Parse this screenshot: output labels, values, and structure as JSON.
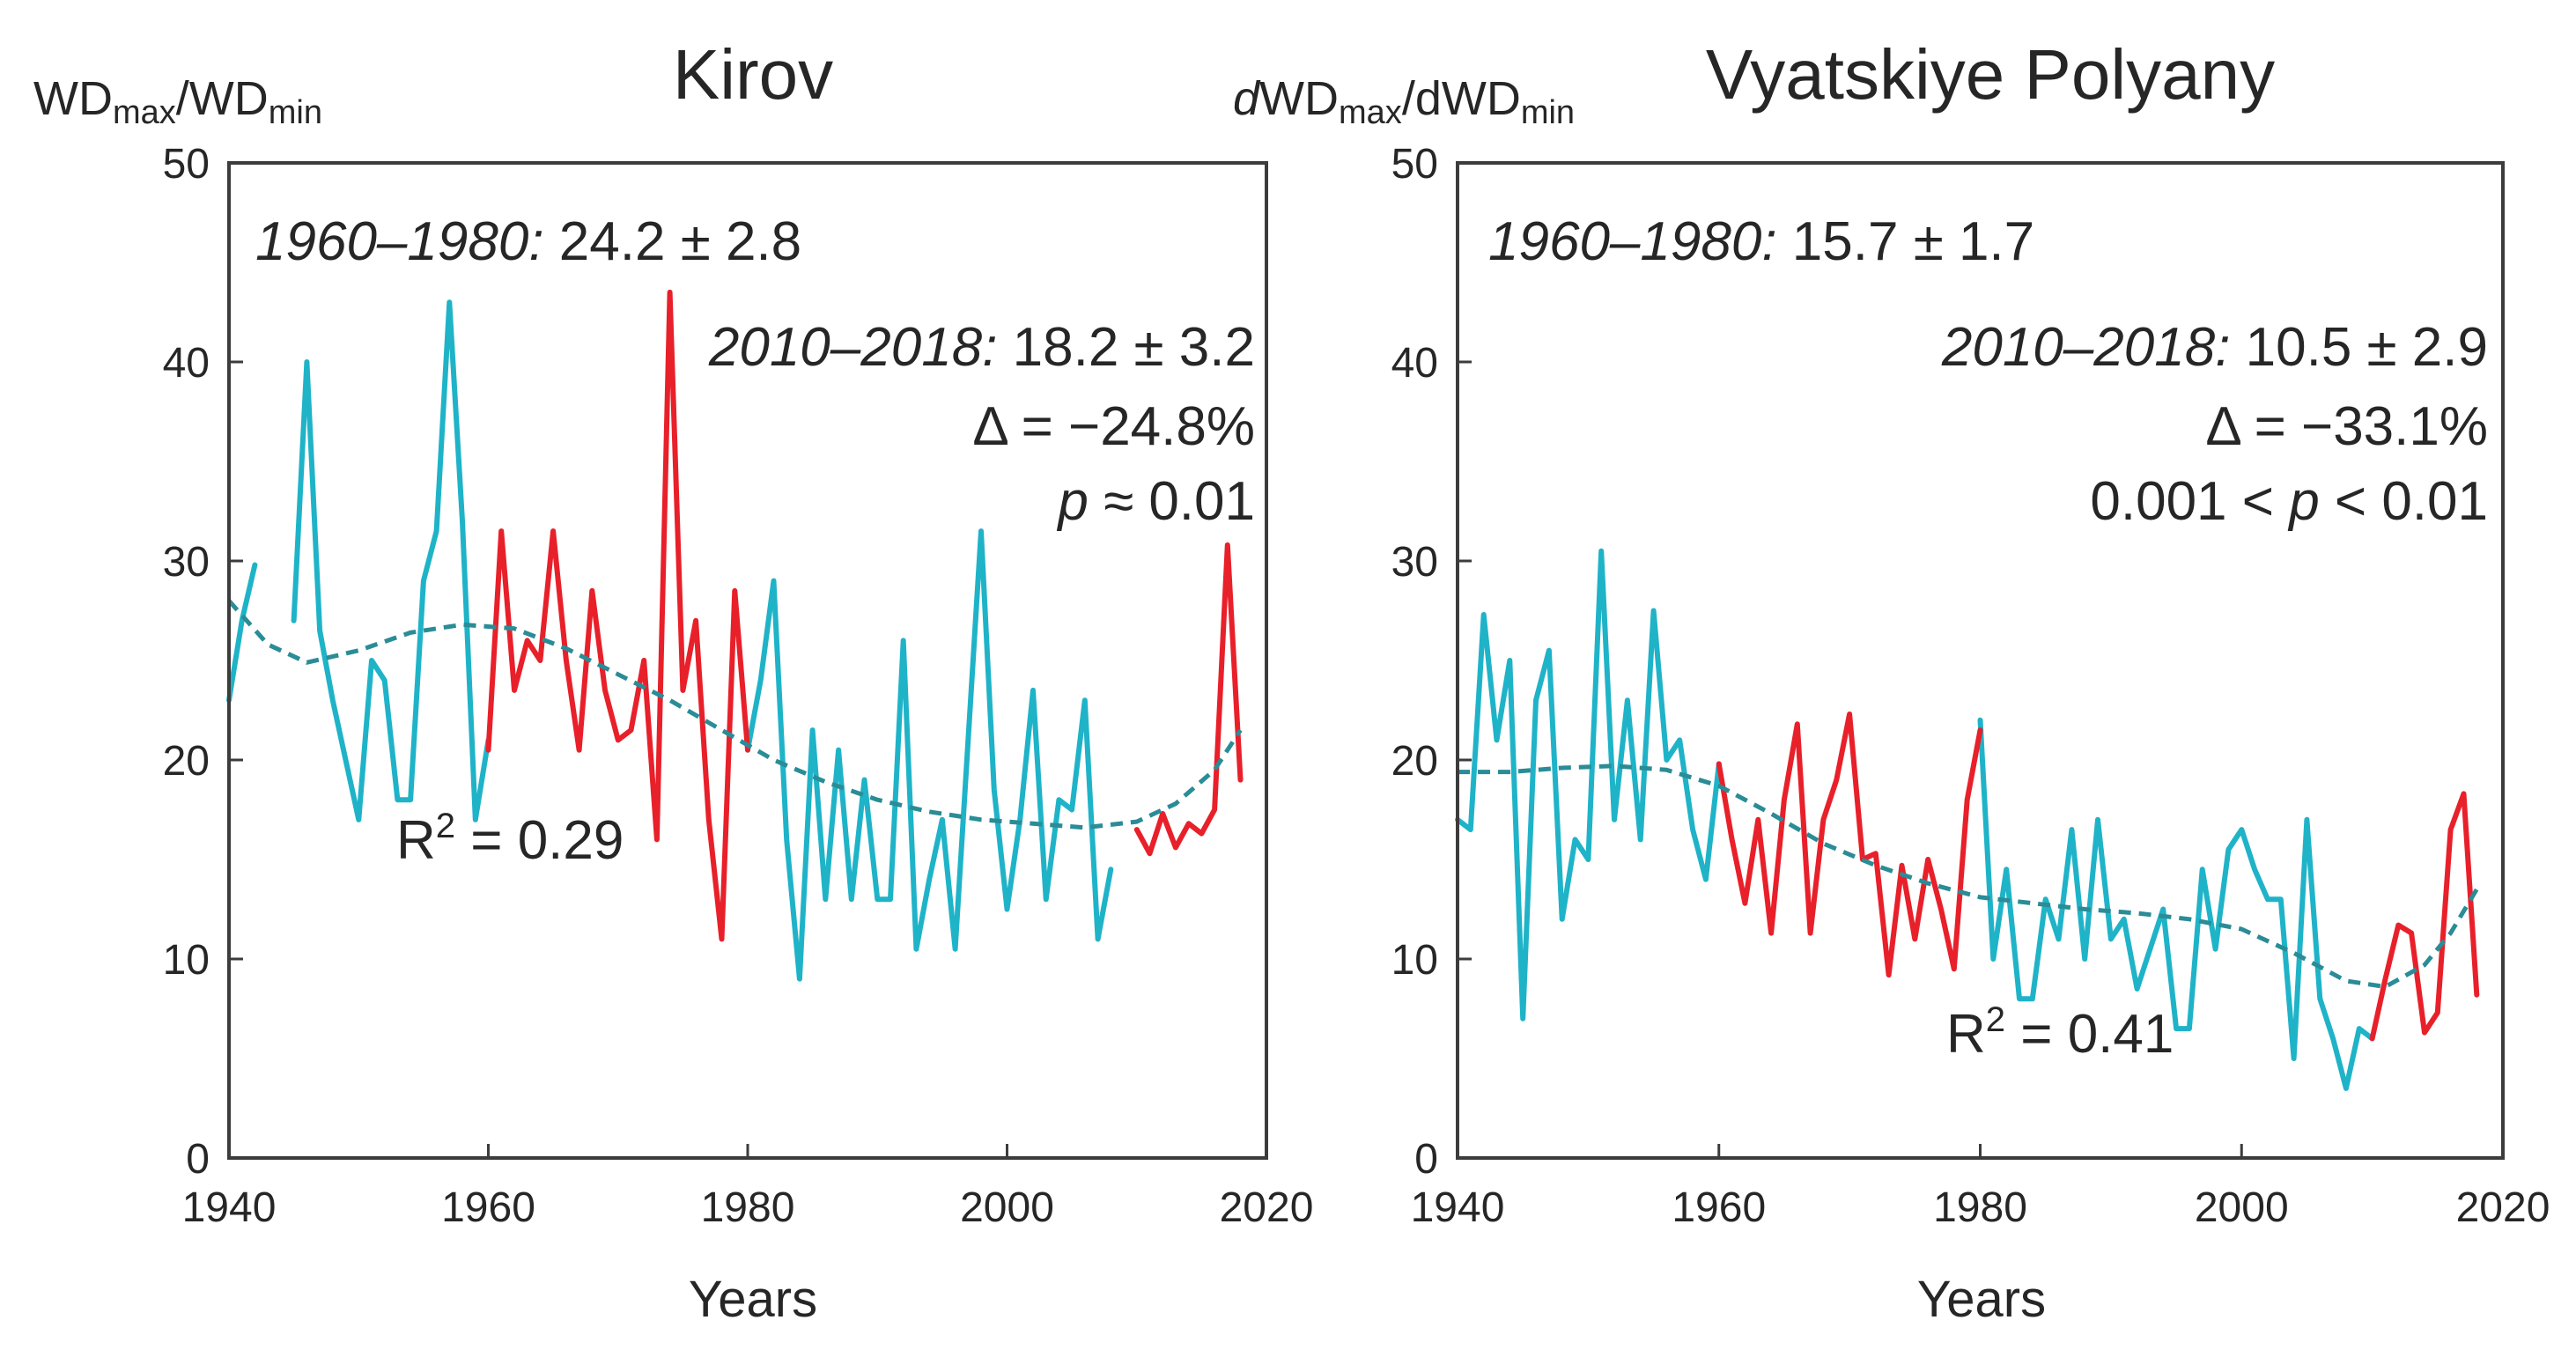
{
  "chart_data": [
    {
      "type": "line",
      "title": "Kirov",
      "ylabel": {
        "main": "WD",
        "sub1": "max",
        "sep": "/WD",
        "sub2": "min",
        "prefix": ""
      },
      "xlabel": "Years",
      "xlim": [
        1940,
        2020
      ],
      "ylim": [
        0,
        50
      ],
      "xticks": [
        "1940",
        "1960",
        "1980",
        "2000",
        "2020"
      ],
      "yticks": [
        "0",
        "10",
        "20",
        "30",
        "40",
        "50"
      ],
      "annotations": {
        "period1_label": "1960–1980:",
        "period1_value": "24.2 ± 2.8",
        "period2_label": "2010–2018:",
        "period2_value": "18.2 ± 3.2",
        "delta": "Δ = −24.8%",
        "p_label": "p",
        "p_rest": " ≈ 0.01",
        "r2_prefix": "R",
        "r2_sup": "2",
        "r2_rest": " = 0.29"
      },
      "series": [
        {
          "name": "cyan",
          "color": "#1fb3c8",
          "segments": [
            {
              "x": [
                1940,
                1941,
                1942
              ],
              "y": [
                23,
                27,
                29.8
              ]
            },
            {
              "x": [
                1945,
                1946,
                1947,
                1948,
                1949,
                1950,
                1951,
                1952,
                1953,
                1954,
                1955,
                1956,
                1957,
                1958,
                1959,
                1960
              ],
              "y": [
                27,
                40,
                26.5,
                23,
                20,
                17,
                25,
                24,
                18,
                18,
                29,
                31.5,
                43,
                32,
                17,
                21
              ]
            },
            {
              "x": [
                1980,
                1981,
                1982,
                1983,
                1984,
                1985,
                1986,
                1987,
                1988,
                1989,
                1990,
                1991,
                1992,
                1993,
                1994,
                1995,
                1996,
                1997,
                1998,
                1999,
                2000,
                2001,
                2002,
                2003,
                2004,
                2005,
                2006,
                2007,
                2008
              ],
              "y": [
                20.5,
                24,
                29,
                16,
                9,
                21.5,
                13,
                20.5,
                13,
                19,
                13,
                13,
                26,
                10.5,
                14,
                17,
                10.5,
                21,
                31.5,
                18.5,
                12.5,
                17,
                23.5,
                13,
                18,
                17.5,
                23,
                11,
                14.5
              ]
            }
          ]
        },
        {
          "name": "red",
          "color": "#e8202a",
          "segments": [
            {
              "x": [
                1960,
                1961,
                1962,
                1963,
                1964,
                1965,
                1966,
                1967,
                1968,
                1969,
                1970,
                1971,
                1972,
                1973,
                1974,
                1975,
                1976,
                1977,
                1978,
                1979,
                1980
              ],
              "y": [
                20.5,
                31.5,
                23.5,
                26,
                25,
                31.5,
                25,
                20.5,
                28.5,
                23.5,
                21,
                21.5,
                25,
                16,
                43.5,
                23.5,
                27,
                17,
                11,
                28.5,
                20.5
              ]
            },
            {
              "x": [
                2010,
                2011,
                2012,
                2013,
                2014,
                2015,
                2016,
                2017,
                2018
              ],
              "y": [
                16.5,
                15.3,
                17.3,
                15.6,
                16.8,
                16.3,
                17.5,
                30.8,
                19
              ]
            }
          ]
        }
      ],
      "trend": {
        "type": "polynomial",
        "style": "dashed",
        "color": "#2a8c96",
        "x": [
          1940,
          1943,
          1946,
          1950,
          1954,
          1958,
          1962,
          1966,
          1970,
          1974,
          1978,
          1982,
          1986,
          1990,
          1994,
          1998,
          2002,
          2006,
          2010,
          2013,
          2016,
          2018
        ],
        "y": [
          28,
          25.8,
          24.9,
          25.5,
          26.4,
          26.8,
          26.6,
          25.6,
          24.3,
          23,
          21.5,
          20,
          18.9,
          18,
          17.4,
          17,
          16.8,
          16.6,
          16.9,
          17.8,
          19.5,
          21.5
        ]
      }
    },
    {
      "type": "line",
      "title": "Vyatskiye Polyany",
      "ylabel": {
        "main": "WD",
        "sub1": "max",
        "sep": "/dWD",
        "sub2": "min",
        "prefix": "d"
      },
      "xlabel": "Years",
      "xlim": [
        1940,
        2020
      ],
      "ylim": [
        0,
        50
      ],
      "xticks": [
        "1940",
        "1960",
        "1980",
        "2000",
        "2020"
      ],
      "yticks": [
        "0",
        "10",
        "20",
        "30",
        "40",
        "50"
      ],
      "annotations": {
        "period1_label": "1960–1980:",
        "period1_value": "15.7 ± 1.7",
        "period2_label": "2010–2018:",
        "period2_value": "10.5 ± 2.9",
        "delta": "Δ = −33.1%",
        "p_pre": "0.001 < ",
        "p_label": "p",
        "p_rest": " < 0.01",
        "r2_prefix": "R",
        "r2_sup": "2",
        "r2_rest": " = 0.41"
      },
      "series": [
        {
          "name": "cyan",
          "color": "#1fb3c8",
          "segments": [
            {
              "x": [
                1940,
                1941,
                1942,
                1943,
                1944,
                1945,
                1946,
                1947,
                1948,
                1949,
                1950,
                1951,
                1952,
                1953,
                1954,
                1955,
                1956,
                1957,
                1958,
                1959,
                1960
              ],
              "y": [
                17,
                16.5,
                27.3,
                21,
                25,
                7,
                23,
                25.5,
                12,
                16,
                15,
                30.5,
                17,
                23,
                16,
                27.5,
                20,
                21,
                16.5,
                14,
                19.8
              ]
            },
            {
              "x": [
                1980,
                1981,
                1982,
                1983,
                1984,
                1985,
                1986,
                1987,
                1988,
                1989,
                1990,
                1991,
                1992,
                1993,
                1994,
                1995,
                1996,
                1997,
                1998,
                1999,
                2000,
                2001,
                2002,
                2003,
                2004,
                2005,
                2006,
                2007,
                2008,
                2009,
                2010
              ],
              "y": [
                22,
                10,
                14.5,
                8,
                8,
                13,
                11,
                16.5,
                10,
                17,
                11,
                12,
                8.5,
                10.5,
                12.5,
                6.5,
                6.5,
                14.5,
                10.5,
                15.5,
                16.5,
                14.5,
                13,
                13,
                5,
                17,
                8,
                6,
                3.5,
                6.5,
                6
              ]
            }
          ]
        },
        {
          "name": "red",
          "color": "#e8202a",
          "segments": [
            {
              "x": [
                1960,
                1961,
                1962,
                1963,
                1964,
                1965,
                1966,
                1967,
                1968,
                1969,
                1970,
                1971,
                1972,
                1973,
                1974,
                1975,
                1976,
                1977,
                1978,
                1979,
                1980
              ],
              "y": [
                19.8,
                16,
                12.8,
                17,
                11.3,
                18,
                21.8,
                11.3,
                17,
                19,
                22.3,
                15,
                15.3,
                9.2,
                14.7,
                11,
                15,
                12.5,
                9.5,
                18,
                21.5
              ]
            },
            {
              "x": [
                2010,
                2011,
                2012,
                2013,
                2014,
                2015,
                2016,
                2017,
                2018
              ],
              "y": [
                6,
                9,
                11.7,
                11.3,
                6.3,
                7.3,
                16.5,
                18.3,
                8.2
              ]
            }
          ]
        }
      ],
      "trend": {
        "type": "polynomial",
        "style": "dashed",
        "color": "#2a8c96",
        "x": [
          1940,
          1944,
          1948,
          1952,
          1956,
          1960,
          1964,
          1968,
          1972,
          1976,
          1980,
          1984,
          1988,
          1992,
          1996,
          2000,
          2004,
          2008,
          2011,
          2014,
          2016,
          2018
        ],
        "y": [
          19.4,
          19.4,
          19.6,
          19.7,
          19.5,
          18.7,
          17.3,
          15.8,
          14.7,
          13.8,
          13.1,
          12.8,
          12.5,
          12.3,
          12,
          11.5,
          10.3,
          8.9,
          8.6,
          9.7,
          11.3,
          13.5
        ]
      }
    }
  ]
}
